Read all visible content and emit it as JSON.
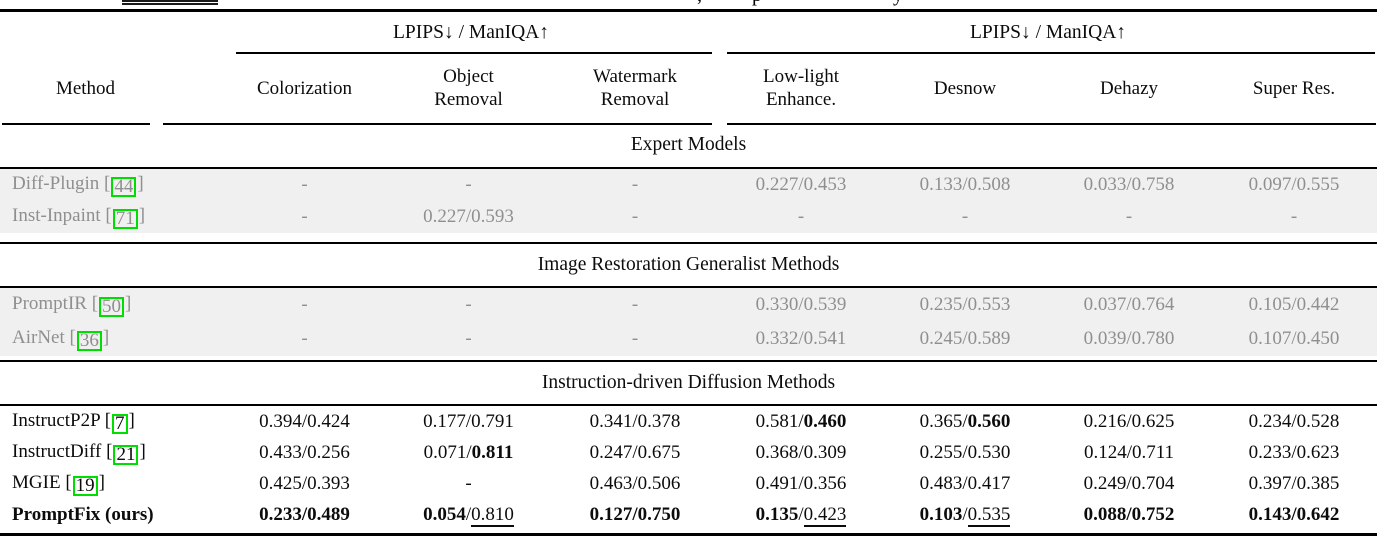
{
  "caption_remnant": {
    "fragments": [
      ",",
      "p",
      "y"
    ]
  },
  "table": {
    "group_header_left": "LPIPS↓ / ManIQA↑",
    "group_header_right": "LPIPS↓ / ManIQA↑",
    "columns": [
      "Method",
      "Colorization",
      "Object\nRemoval",
      "Watermark\nRemoval",
      "Low-light\nEnhance.",
      "Desnow",
      "Dehazy",
      "Super Res."
    ],
    "sections": [
      {
        "title": "Expert Models",
        "grayed": true,
        "rows": [
          {
            "method": "Diff-Plugin",
            "cite": "44",
            "bold": false,
            "cells": [
              "-",
              "-",
              "-",
              "0.227/0.453",
              "0.133/0.508",
              "0.033/0.758",
              "0.097/0.555"
            ]
          },
          {
            "method": "Inst-Inpaint",
            "cite": "71",
            "bold": false,
            "cells": [
              "-",
              "0.227/0.593",
              "-",
              "-",
              "-",
              "-",
              "-"
            ]
          }
        ]
      },
      {
        "title": "Image Restoration Generalist Methods",
        "grayed": true,
        "rows": [
          {
            "method": "PromptIR",
            "cite": "50",
            "bold": false,
            "cells": [
              "-",
              "-",
              "-",
              "0.330/0.539",
              "0.235/0.553",
              "0.037/0.764",
              "0.105/0.442"
            ]
          },
          {
            "method": "AirNet",
            "cite": "36",
            "bold": false,
            "cells": [
              "-",
              "-",
              "-",
              "0.332/0.541",
              "0.245/0.589",
              "0.039/0.780",
              "0.107/0.450"
            ]
          }
        ]
      },
      {
        "title": "Instruction-driven Diffusion Methods",
        "grayed": false,
        "rows": [
          {
            "method": "InstructP2P",
            "cite": "7",
            "bold": false,
            "cells": [
              "0.394/0.424",
              "0.177/0.791",
              "0.341/0.378",
              "0.581/**0.460**",
              "0.365/**0.560**",
              "0.216/0.625",
              "0.234/0.528"
            ]
          },
          {
            "method": "InstructDiff",
            "cite": "21",
            "bold": false,
            "cells": [
              "0.433/0.256",
              "0.071/**0.811**",
              "0.247/0.675",
              "0.368/0.309",
              "0.255/0.530",
              "0.124/0.711",
              "0.233/0.623"
            ]
          },
          {
            "method": "MGIE",
            "cite": "19",
            "bold": false,
            "cells": [
              "0.425/0.393",
              "-",
              "0.463/0.506",
              "0.491/0.356",
              "0.483/0.417",
              "0.249/0.704",
              "0.397/0.385"
            ]
          },
          {
            "method": "PromptFix (ours)",
            "cite": null,
            "bold": true,
            "cells": [
              "**0.233/0.489**",
              "**0.054**/__0.810__",
              "**0.127/0.750**",
              "**0.135**/__0.423__",
              "**0.103**/__0.535__",
              "**0.088/0.752**",
              "**0.143/0.642**"
            ]
          }
        ]
      }
    ]
  },
  "colors": {
    "citation_box": "#00dd00",
    "gray_text": "#8f8f8f",
    "gray_row_bg": "#f0f0f0",
    "rule": "#000000"
  }
}
